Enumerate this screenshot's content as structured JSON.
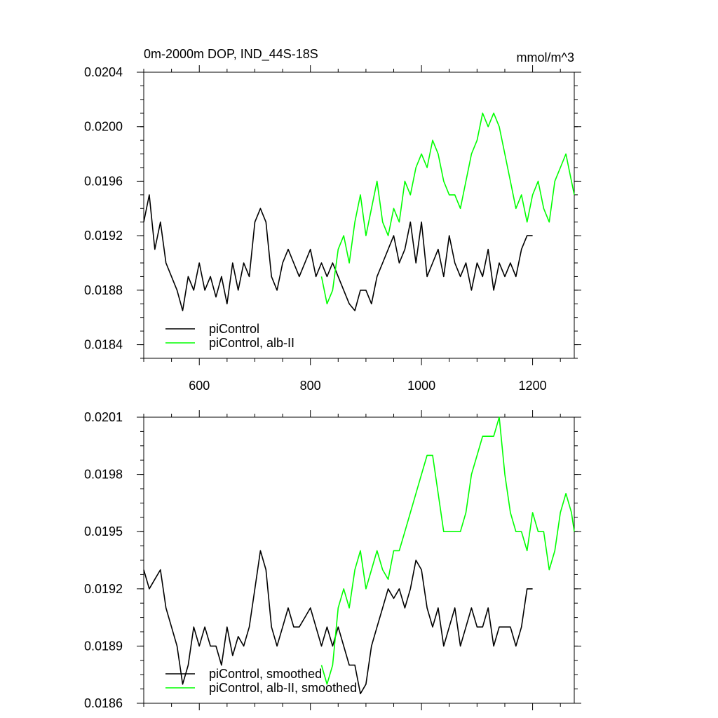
{
  "chart_data": [
    {
      "type": "line",
      "title": "0m-2000m DOP, IND_44S-18S",
      "units": "mmol/m^3",
      "xlim": [
        500,
        1275
      ],
      "ylim": [
        0.0183,
        0.0204
      ],
      "xticks": [
        600,
        800,
        1000,
        1200
      ],
      "yticks": [
        0.0184,
        0.0188,
        0.0192,
        0.0196,
        0.02,
        0.0204
      ],
      "ytick_labels": [
        "0.0184",
        "0.0188",
        "0.0192",
        "0.0196",
        "0.0200",
        "0.0204"
      ],
      "show_xtick_labels": true,
      "legend_position": "bottom-left",
      "series": [
        {
          "name": "piControl",
          "color": "#000000",
          "points": [
            [
              500,
              0.0193
            ],
            [
              510,
              0.0195
            ],
            [
              520,
              0.0191
            ],
            [
              530,
              0.0193
            ],
            [
              540,
              0.019
            ],
            [
              550,
              0.0189
            ],
            [
              560,
              0.0188
            ],
            [
              570,
              0.01865
            ],
            [
              580,
              0.0189
            ],
            [
              590,
              0.0188
            ],
            [
              600,
              0.019
            ],
            [
              610,
              0.0188
            ],
            [
              620,
              0.0189
            ],
            [
              630,
              0.01875
            ],
            [
              640,
              0.0189
            ],
            [
              650,
              0.0187
            ],
            [
              660,
              0.019
            ],
            [
              670,
              0.0188
            ],
            [
              680,
              0.019
            ],
            [
              690,
              0.0189
            ],
            [
              700,
              0.0193
            ],
            [
              710,
              0.0194
            ],
            [
              720,
              0.0193
            ],
            [
              730,
              0.0189
            ],
            [
              740,
              0.0188
            ],
            [
              750,
              0.019
            ],
            [
              760,
              0.0191
            ],
            [
              770,
              0.019
            ],
            [
              780,
              0.0189
            ],
            [
              790,
              0.019
            ],
            [
              800,
              0.0191
            ],
            [
              810,
              0.0189
            ],
            [
              820,
              0.019
            ],
            [
              830,
              0.0189
            ],
            [
              840,
              0.019
            ],
            [
              850,
              0.0189
            ],
            [
              860,
              0.0188
            ],
            [
              870,
              0.0187
            ],
            [
              880,
              0.01865
            ],
            [
              890,
              0.0188
            ],
            [
              900,
              0.0188
            ],
            [
              910,
              0.0187
            ],
            [
              920,
              0.0189
            ],
            [
              930,
              0.019
            ],
            [
              940,
              0.0191
            ],
            [
              950,
              0.0192
            ],
            [
              960,
              0.019
            ],
            [
              970,
              0.0191
            ],
            [
              980,
              0.0193
            ],
            [
              990,
              0.019
            ],
            [
              1000,
              0.0193
            ],
            [
              1010,
              0.0189
            ],
            [
              1020,
              0.019
            ],
            [
              1030,
              0.0191
            ],
            [
              1040,
              0.0189
            ],
            [
              1050,
              0.0192
            ],
            [
              1060,
              0.019
            ],
            [
              1070,
              0.0189
            ],
            [
              1080,
              0.019
            ],
            [
              1090,
              0.0188
            ],
            [
              1100,
              0.019
            ],
            [
              1110,
              0.0189
            ],
            [
              1120,
              0.0191
            ],
            [
              1130,
              0.0188
            ],
            [
              1140,
              0.019
            ],
            [
              1150,
              0.0189
            ],
            [
              1160,
              0.019
            ],
            [
              1170,
              0.0189
            ],
            [
              1180,
              0.0191
            ],
            [
              1190,
              0.0192
            ],
            [
              1200,
              0.0192
            ]
          ]
        },
        {
          "name": "piControl, alb-II",
          "color": "#00ff00",
          "points": [
            [
              820,
              0.0189
            ],
            [
              830,
              0.0187
            ],
            [
              840,
              0.0188
            ],
            [
              850,
              0.0191
            ],
            [
              860,
              0.0192
            ],
            [
              870,
              0.019
            ],
            [
              880,
              0.0193
            ],
            [
              890,
              0.0195
            ],
            [
              900,
              0.0192
            ],
            [
              910,
              0.0194
            ],
            [
              920,
              0.0196
            ],
            [
              930,
              0.0193
            ],
            [
              940,
              0.0192
            ],
            [
              950,
              0.0194
            ],
            [
              960,
              0.0193
            ],
            [
              970,
              0.0196
            ],
            [
              980,
              0.0195
            ],
            [
              990,
              0.0197
            ],
            [
              1000,
              0.0198
            ],
            [
              1010,
              0.0197
            ],
            [
              1020,
              0.0199
            ],
            [
              1030,
              0.0198
            ],
            [
              1040,
              0.0196
            ],
            [
              1050,
              0.0195
            ],
            [
              1060,
              0.0195
            ],
            [
              1070,
              0.0194
            ],
            [
              1080,
              0.0196
            ],
            [
              1090,
              0.0198
            ],
            [
              1100,
              0.0199
            ],
            [
              1110,
              0.0201
            ],
            [
              1120,
              0.02
            ],
            [
              1130,
              0.0201
            ],
            [
              1140,
              0.02
            ],
            [
              1150,
              0.0198
            ],
            [
              1160,
              0.0196
            ],
            [
              1170,
              0.0194
            ],
            [
              1180,
              0.0195
            ],
            [
              1190,
              0.0193
            ],
            [
              1200,
              0.0195
            ],
            [
              1210,
              0.0196
            ],
            [
              1220,
              0.0194
            ],
            [
              1230,
              0.0193
            ],
            [
              1240,
              0.0196
            ],
            [
              1250,
              0.0197
            ],
            [
              1260,
              0.0198
            ],
            [
              1270,
              0.0196
            ],
            [
              1275,
              0.0195
            ]
          ]
        }
      ]
    },
    {
      "type": "line",
      "title": "",
      "units": "",
      "xlim": [
        500,
        1275
      ],
      "ylim": [
        0.0186,
        0.0201
      ],
      "xticks": [
        600,
        800,
        1000,
        1200
      ],
      "yticks": [
        0.0186,
        0.0189,
        0.0192,
        0.0195,
        0.0198,
        0.0201
      ],
      "ytick_labels": [
        "0.0186",
        "0.0189",
        "0.0192",
        "0.0195",
        "0.0198",
        "0.0201"
      ],
      "show_xtick_labels": false,
      "legend_position": "bottom-left",
      "series": [
        {
          "name": "piControl, smoothed",
          "color": "#000000",
          "points": [
            [
              500,
              0.0193
            ],
            [
              510,
              0.0192
            ],
            [
              520,
              0.01925
            ],
            [
              530,
              0.0193
            ],
            [
              540,
              0.0191
            ],
            [
              550,
              0.019
            ],
            [
              560,
              0.0189
            ],
            [
              570,
              0.0187
            ],
            [
              580,
              0.0188
            ],
            [
              590,
              0.019
            ],
            [
              600,
              0.0189
            ],
            [
              610,
              0.019
            ],
            [
              620,
              0.0189
            ],
            [
              630,
              0.0189
            ],
            [
              640,
              0.0188
            ],
            [
              650,
              0.019
            ],
            [
              660,
              0.01885
            ],
            [
              670,
              0.01895
            ],
            [
              680,
              0.0189
            ],
            [
              690,
              0.019
            ],
            [
              700,
              0.0192
            ],
            [
              710,
              0.0194
            ],
            [
              720,
              0.0193
            ],
            [
              730,
              0.019
            ],
            [
              740,
              0.0189
            ],
            [
              750,
              0.019
            ],
            [
              760,
              0.0191
            ],
            [
              770,
              0.019
            ],
            [
              780,
              0.019
            ],
            [
              790,
              0.01905
            ],
            [
              800,
              0.0191
            ],
            [
              810,
              0.019
            ],
            [
              820,
              0.0189
            ],
            [
              830,
              0.019
            ],
            [
              840,
              0.0189
            ],
            [
              850,
              0.019
            ],
            [
              860,
              0.0189
            ],
            [
              870,
              0.0188
            ],
            [
              880,
              0.0188
            ],
            [
              890,
              0.01865
            ],
            [
              900,
              0.0187
            ],
            [
              910,
              0.0189
            ],
            [
              920,
              0.019
            ],
            [
              930,
              0.0191
            ],
            [
              940,
              0.0192
            ],
            [
              950,
              0.01915
            ],
            [
              960,
              0.0192
            ],
            [
              970,
              0.0191
            ],
            [
              980,
              0.0192
            ],
            [
              990,
              0.01935
            ],
            [
              1000,
              0.0193
            ],
            [
              1010,
              0.0191
            ],
            [
              1020,
              0.019
            ],
            [
              1030,
              0.0191
            ],
            [
              1040,
              0.0189
            ],
            [
              1050,
              0.019
            ],
            [
              1060,
              0.0191
            ],
            [
              1070,
              0.0189
            ],
            [
              1080,
              0.019
            ],
            [
              1090,
              0.0191
            ],
            [
              1100,
              0.019
            ],
            [
              1110,
              0.019
            ],
            [
              1120,
              0.0191
            ],
            [
              1130,
              0.0189
            ],
            [
              1140,
              0.019
            ],
            [
              1150,
              0.019
            ],
            [
              1160,
              0.019
            ],
            [
              1170,
              0.0189
            ],
            [
              1180,
              0.019
            ],
            [
              1190,
              0.0192
            ],
            [
              1200,
              0.0192
            ]
          ]
        },
        {
          "name": "piControl, alb-II, smoothed",
          "color": "#00ff00",
          "points": [
            [
              820,
              0.0188
            ],
            [
              830,
              0.0187
            ],
            [
              840,
              0.0188
            ],
            [
              850,
              0.0191
            ],
            [
              860,
              0.0192
            ],
            [
              870,
              0.0191
            ],
            [
              880,
              0.0193
            ],
            [
              890,
              0.0194
            ],
            [
              900,
              0.0192
            ],
            [
              910,
              0.0193
            ],
            [
              920,
              0.0194
            ],
            [
              930,
              0.0193
            ],
            [
              940,
              0.01925
            ],
            [
              950,
              0.0194
            ],
            [
              960,
              0.0194
            ],
            [
              970,
              0.0195
            ],
            [
              980,
              0.0196
            ],
            [
              990,
              0.0197
            ],
            [
              1000,
              0.0198
            ],
            [
              1010,
              0.0199
            ],
            [
              1020,
              0.0199
            ],
            [
              1030,
              0.0197
            ],
            [
              1040,
              0.0195
            ],
            [
              1050,
              0.0195
            ],
            [
              1060,
              0.0195
            ],
            [
              1070,
              0.0195
            ],
            [
              1080,
              0.0196
            ],
            [
              1090,
              0.0198
            ],
            [
              1100,
              0.0199
            ],
            [
              1110,
              0.02
            ],
            [
              1120,
              0.02
            ],
            [
              1130,
              0.02
            ],
            [
              1140,
              0.0201
            ],
            [
              1150,
              0.0198
            ],
            [
              1160,
              0.0196
            ],
            [
              1170,
              0.0195
            ],
            [
              1180,
              0.0195
            ],
            [
              1190,
              0.0194
            ],
            [
              1200,
              0.0196
            ],
            [
              1210,
              0.0195
            ],
            [
              1220,
              0.0195
            ],
            [
              1230,
              0.0193
            ],
            [
              1240,
              0.0194
            ],
            [
              1250,
              0.0196
            ],
            [
              1260,
              0.0197
            ],
            [
              1270,
              0.0196
            ],
            [
              1275,
              0.0195
            ]
          ]
        }
      ]
    }
  ]
}
